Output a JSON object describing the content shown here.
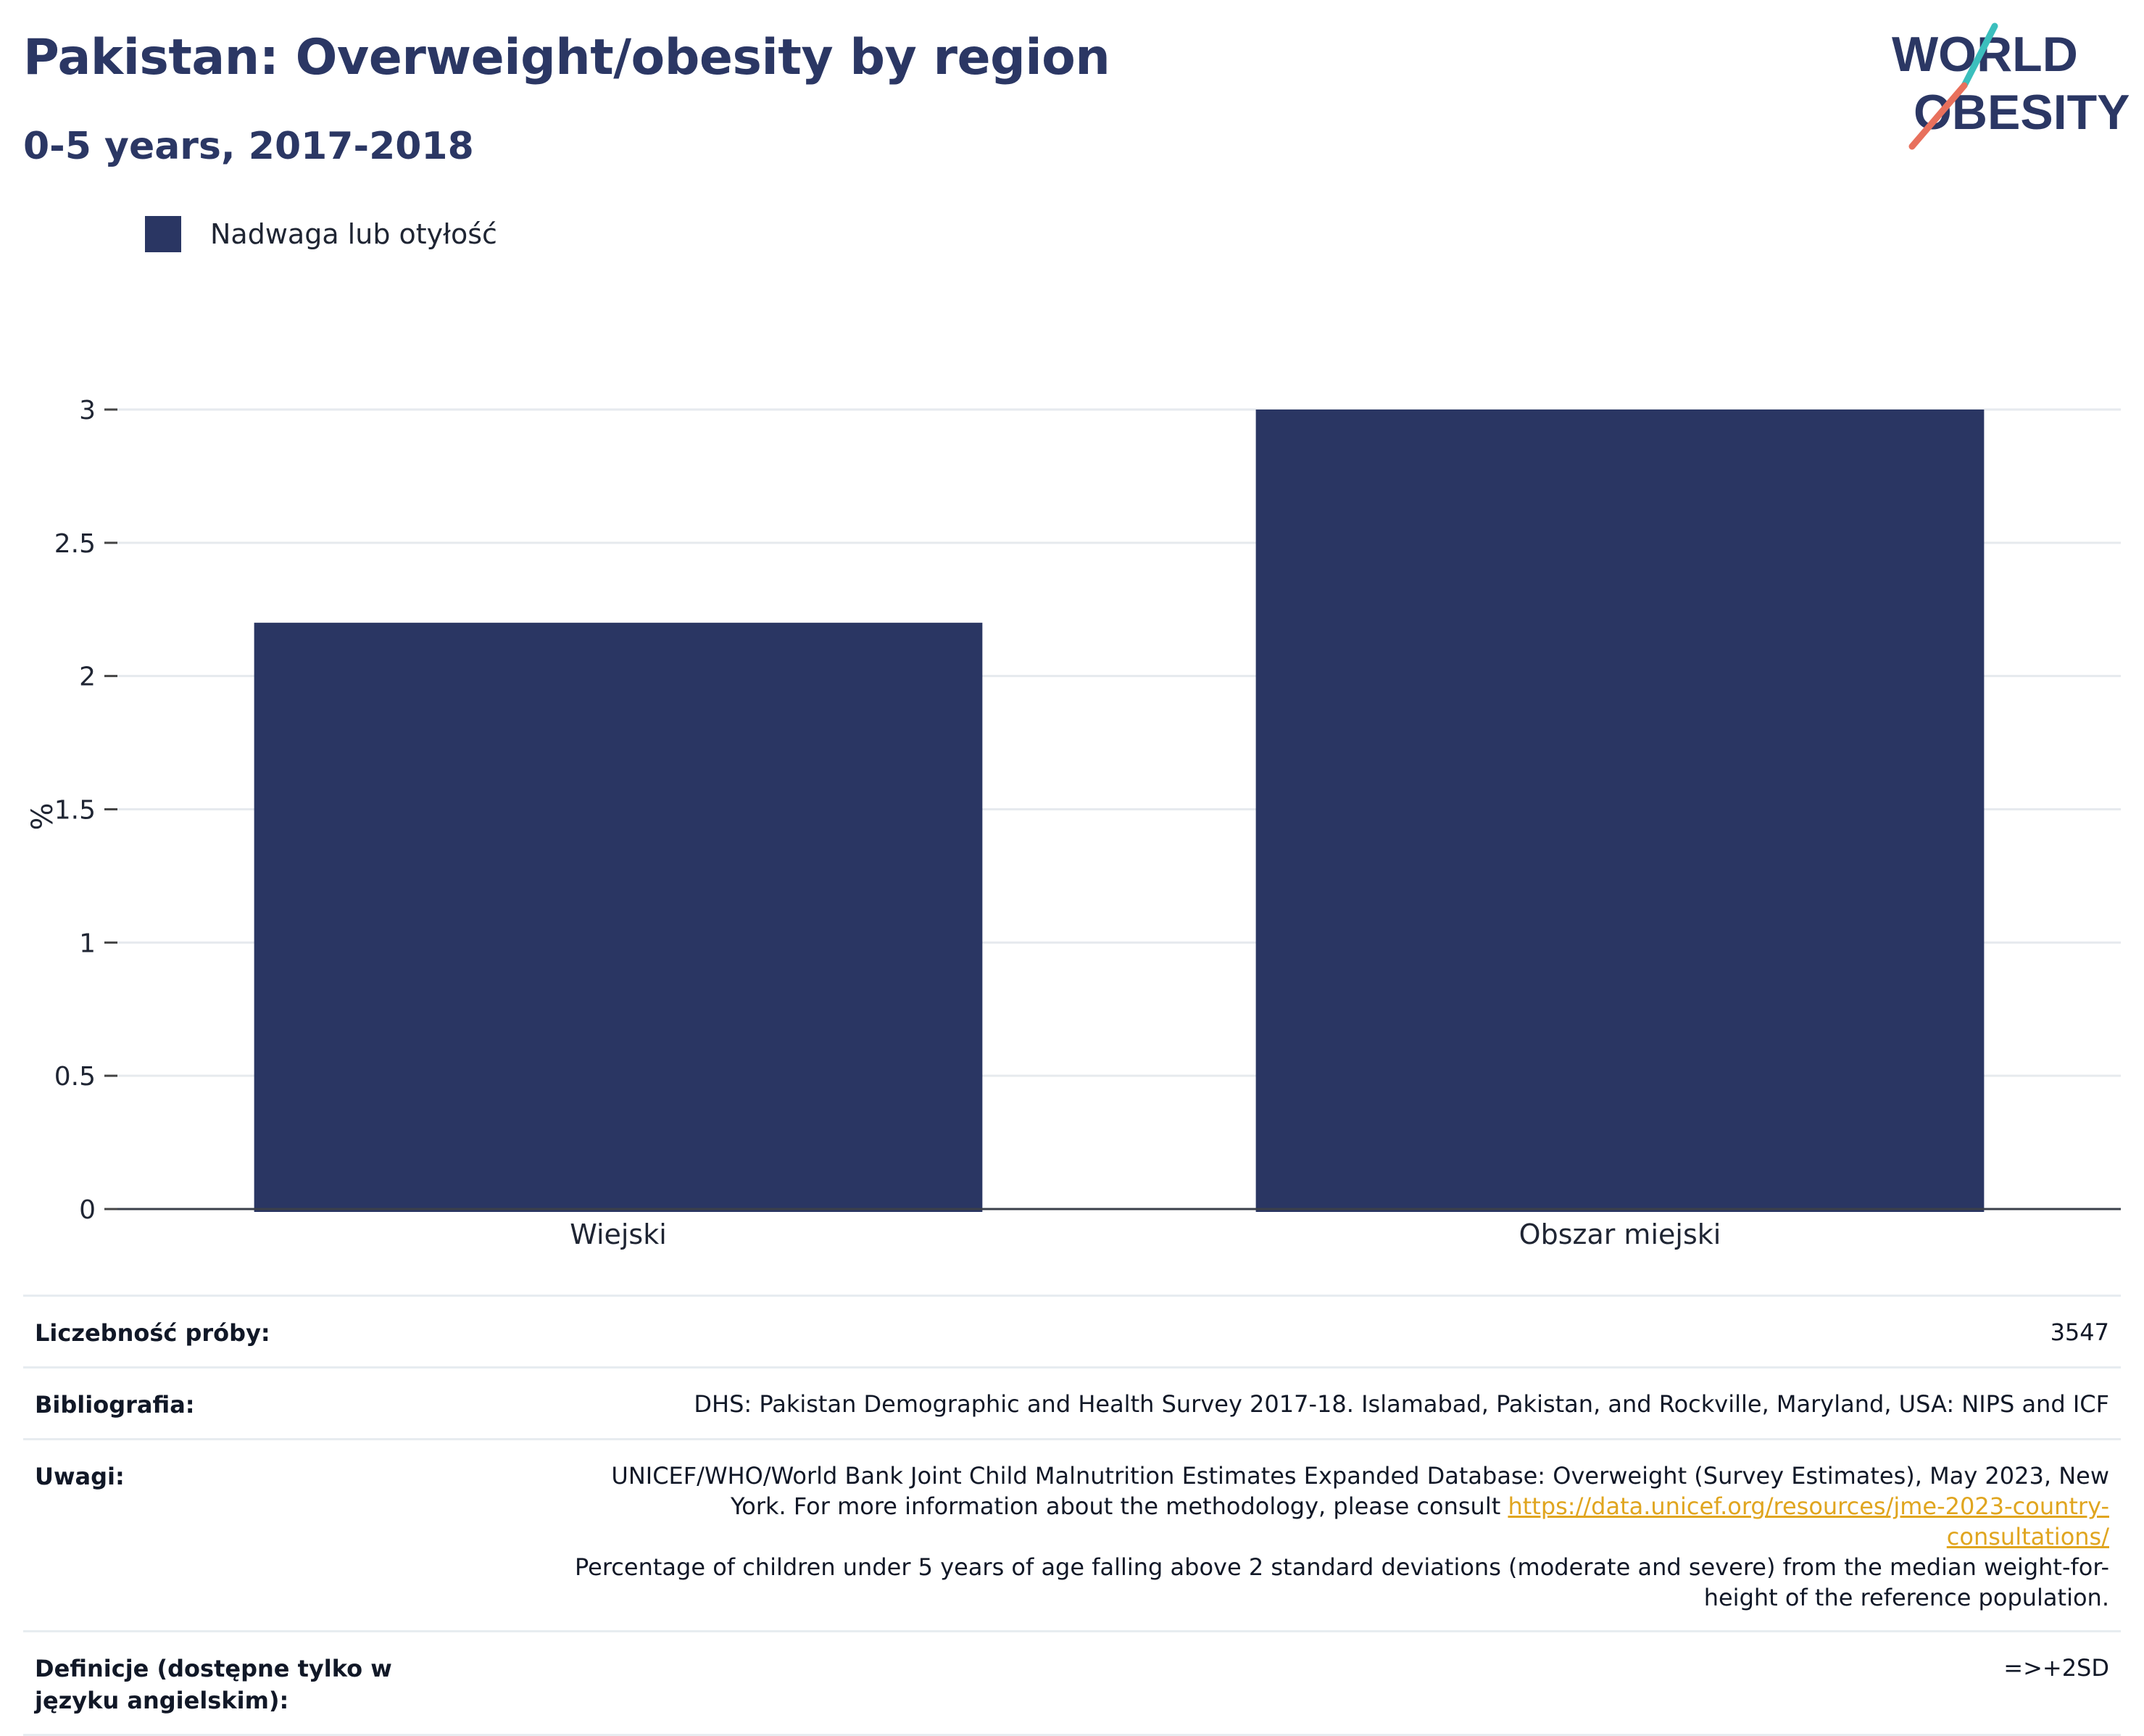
{
  "header": {
    "title": "Pakistan: Overweight/obesity by region",
    "subtitle": "0-5 years, 2017-2018"
  },
  "logo": {
    "line1": "WORLD",
    "line2": "OBESITY"
  },
  "legend": {
    "label": "Nadwaga lub otyłość",
    "color": "#2a3663"
  },
  "chart_data": {
    "type": "bar",
    "categories": [
      "Wiejski",
      "Obszar miejski"
    ],
    "series": [
      {
        "name": "Nadwaga lub otyłość",
        "values": [
          2.2,
          3.0
        ],
        "color": "#2a3663"
      }
    ],
    "xlabel": "",
    "ylabel": "%",
    "ylim": [
      0,
      3
    ],
    "yticks": [
      0,
      0.5,
      1,
      1.5,
      2,
      2.5,
      3
    ],
    "ytick_labels": [
      "0",
      "0.5",
      "1",
      "1.5",
      "2",
      "2.5",
      "3"
    ],
    "grid": true,
    "legend_position": "top-left"
  },
  "meta": {
    "sample_size_label": "Liczebność próby:",
    "sample_size_value": "3547",
    "bibliography_label": "Bibliografia:",
    "bibliography_value": "DHS: Pakistan Demographic and Health Survey 2017-18. Islamabad, Pakistan, and Rockville, Maryland, USA: NIPS and ICF",
    "notes_label": "Uwagi:",
    "notes_line1": "UNICEF/WHO/World Bank Joint Child Malnutrition Estimates Expanded Database: Overweight (Survey Estimates), May 2023, New York. For more information about the methodology, please consult",
    "notes_link": "https://data.unicef.org/resources/jme-2023-country-consultations/",
    "notes_line2": "Percentage of children under 5 years of age falling above 2 standard deviations (moderate and severe) from the median weight-for-height of the reference population.",
    "definitions_label": "Definicje (dostępne tylko w języku angielskim):",
    "definitions_value": "=>+2SD"
  }
}
